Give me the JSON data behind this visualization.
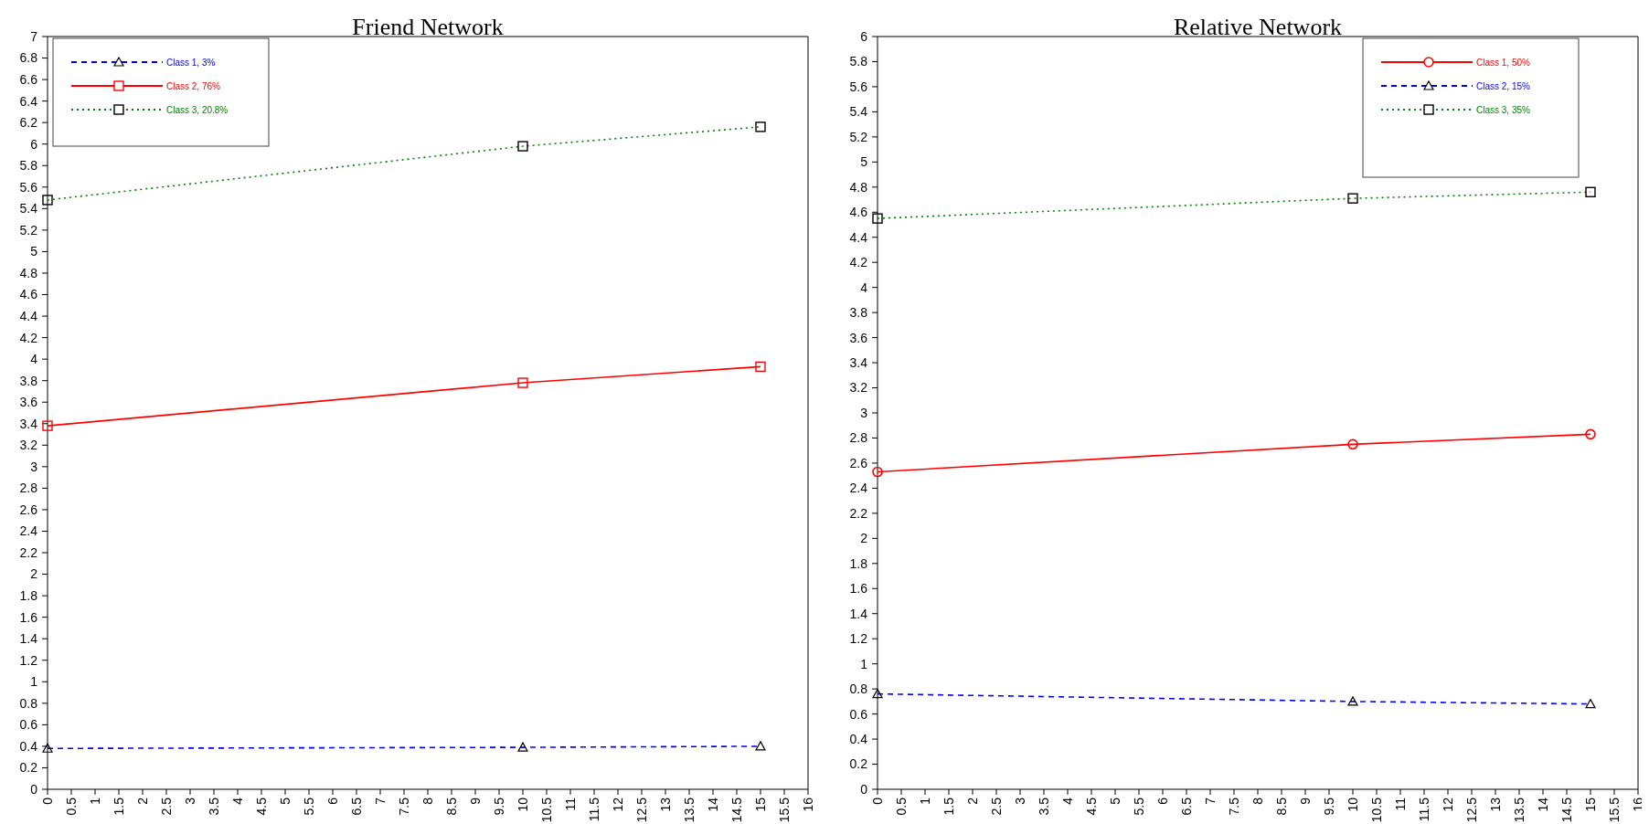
{
  "chart_data": [
    {
      "type": "line",
      "title": "Friend Network",
      "x": [
        0,
        10,
        15
      ],
      "xlim": [
        0,
        16
      ],
      "xticks": [
        0,
        0.5,
        1,
        1.5,
        2,
        2.5,
        3,
        3.5,
        4,
        4.5,
        5,
        5.5,
        6,
        6.5,
        7,
        7.5,
        8,
        8.5,
        9,
        9.5,
        10,
        10.5,
        11,
        11.5,
        12,
        12.5,
        13,
        13.5,
        14,
        14.5,
        15,
        15.5,
        16
      ],
      "ylim": [
        0,
        7
      ],
      "yticks": [
        0,
        0.2,
        0.4,
        0.6,
        0.8,
        1,
        1.2,
        1.4,
        1.6,
        1.8,
        2,
        2.2,
        2.4,
        2.6,
        2.8,
        3,
        3.2,
        3.4,
        3.6,
        3.8,
        4,
        4.2,
        4.4,
        4.6,
        4.8,
        5,
        5.2,
        5.4,
        5.6,
        5.8,
        6,
        6.2,
        6.4,
        6.6,
        6.8,
        7
      ],
      "legend": "top left",
      "grid": false,
      "series": [
        {
          "name": "Class 1, 3%",
          "color": "#0000ff",
          "values": [
            0.38,
            0.39,
            0.4
          ],
          "line_style": "dashed",
          "marker": "triangle"
        },
        {
          "name": "Class 2, 76%",
          "color": "#ff0000",
          "values": [
            3.38,
            3.78,
            3.93
          ],
          "line_style": "solid",
          "marker": "square"
        },
        {
          "name": "Class 3, 20.8%",
          "color": "#008000",
          "values": [
            5.48,
            5.98,
            6.16
          ],
          "line_style": "dotted",
          "marker": "square"
        }
      ]
    },
    {
      "type": "line",
      "title": "Relative Network",
      "x": [
        0,
        10,
        15
      ],
      "xlim": [
        0,
        16
      ],
      "xticks": [
        0,
        0.5,
        1,
        1.5,
        2,
        2.5,
        3,
        3.5,
        4,
        4.5,
        5,
        5.5,
        6,
        6.5,
        7,
        7.5,
        8,
        8.5,
        9,
        9.5,
        10,
        10.5,
        11,
        11.5,
        12,
        12.5,
        13,
        13.5,
        14,
        14.5,
        15,
        15.5,
        16
      ],
      "ylim": [
        0,
        6
      ],
      "yticks": [
        0,
        0.2,
        0.4,
        0.6,
        0.8,
        1,
        1.2,
        1.4,
        1.6,
        1.8,
        2,
        2.2,
        2.4,
        2.6,
        2.8,
        3,
        3.2,
        3.4,
        3.6,
        3.8,
        4,
        4.2,
        4.4,
        4.6,
        4.8,
        5,
        5.2,
        5.4,
        5.6,
        5.8,
        6
      ],
      "legend": "top right",
      "grid": false,
      "series": [
        {
          "name": "Class 1, 50%",
          "color": "#ff0000",
          "values": [
            2.53,
            2.75,
            2.83
          ],
          "line_style": "solid",
          "marker": "circle"
        },
        {
          "name": "Class 2, 15%",
          "color": "#0000ff",
          "values": [
            0.76,
            0.7,
            0.68
          ],
          "line_style": "dashed",
          "marker": "triangle"
        },
        {
          "name": "Class 3, 35%",
          "color": "#008000",
          "values": [
            4.55,
            4.71,
            4.76
          ],
          "line_style": "dotted",
          "marker": "square"
        }
      ]
    }
  ]
}
